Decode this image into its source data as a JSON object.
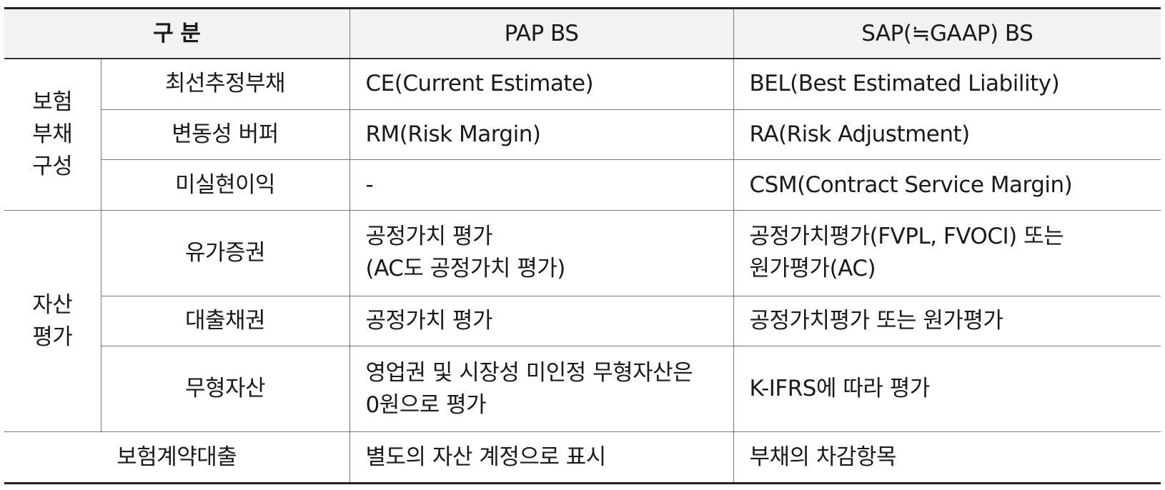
{
  "header": {
    "category": "구 분",
    "pap": "PAP BS",
    "sap": "SAP(≒GAAP) BS"
  },
  "rows": {
    "liab_group": [
      "보험",
      "부채",
      "구성"
    ],
    "asset_group": [
      "자산",
      "평가"
    ],
    "ce": {
      "label": "최선추정부채",
      "pap": "CE(Current Estimate)",
      "sap": "BEL(Best Estimated Liability)"
    },
    "rm": {
      "label": "변동성 버퍼",
      "pap": "RM(Risk Margin)",
      "sap": "RA(Risk Adjustment)"
    },
    "csm": {
      "label": "미실현이익",
      "pap": "-",
      "sap": "CSM(Contract Service Margin)"
    },
    "securities": {
      "label": "유가증권",
      "pap": [
        "공정가치 평가",
        "(AC도 공정가치 평가)"
      ],
      "sap": [
        "공정가치평가(FVPL, FVOCI) 또는",
        "원가평가(AC)"
      ]
    },
    "loans": {
      "label": "대출채권",
      "pap": "공정가치 평가",
      "sap": "공정가치평가 또는 원가평가"
    },
    "intangibles": {
      "label": "무형자산",
      "pap": [
        "영업권 및 시장성 미인정 무형자산은",
        "0원으로 평가"
      ],
      "sap": "K-IFRS에 따라 평가"
    },
    "policy_loans": {
      "label": "보험계약대출",
      "pap": "별도의 자산 계정으로 표시",
      "sap": "부채의 차감항목"
    }
  }
}
